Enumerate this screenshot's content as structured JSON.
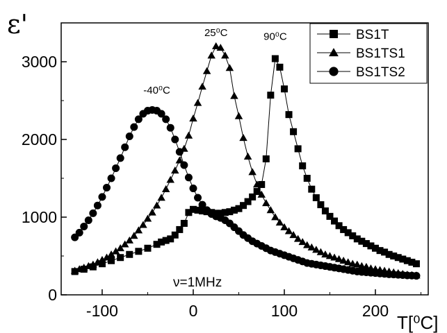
{
  "chart_data": {
    "type": "scatter",
    "ylabel": "ε'",
    "xlabel": "T[⁰C]",
    "xlim": [
      -145,
      258
    ],
    "ylim": [
      0,
      3500
    ],
    "x_ticks": [
      -100,
      0,
      100,
      200
    ],
    "y_ticks": [
      0,
      1000,
      2000,
      3000
    ],
    "grid": false,
    "legend_position": "top-right",
    "annotation_text": "ν=1MHz",
    "series": [
      {
        "name": "BS1T",
        "marker": "square",
        "x": [
          -130,
          -120,
          -110,
          -100,
          -90,
          -80,
          -70,
          -60,
          -50,
          -40,
          -35,
          -30,
          -25,
          -20,
          -15,
          -10,
          -5,
          0,
          5,
          10,
          15,
          20,
          25,
          30,
          35,
          40,
          45,
          50,
          55,
          60,
          65,
          70,
          75,
          80,
          85,
          90,
          95,
          100,
          105,
          110,
          115,
          120,
          125,
          130,
          135,
          140,
          145,
          150,
          155,
          160,
          165,
          170,
          175,
          180,
          185,
          190,
          195,
          200,
          205,
          210,
          215,
          220,
          225,
          230,
          235,
          240,
          245
        ],
        "y": [
          300,
          330,
          360,
          400,
          440,
          480,
          520,
          560,
          600,
          650,
          680,
          700,
          720,
          770,
          840,
          920,
          1060,
          1100,
          1090,
          1080,
          1070,
          1060,
          1050,
          1050,
          1060,
          1070,
          1090,
          1110,
          1150,
          1200,
          1260,
          1330,
          1420,
          1750,
          2570,
          3040,
          2930,
          2650,
          2320,
          2100,
          1880,
          1660,
          1500,
          1360,
          1250,
          1160,
          1080,
          1010,
          950,
          890,
          840,
          800,
          760,
          720,
          690,
          660,
          630,
          600,
          570,
          550,
          520,
          500,
          480,
          460,
          440,
          420,
          400
        ]
      },
      {
        "name": "BS1TS1",
        "marker": "triangle",
        "x": [
          -130,
          -125,
          -120,
          -115,
          -110,
          -105,
          -100,
          -95,
          -90,
          -85,
          -80,
          -75,
          -70,
          -65,
          -60,
          -55,
          -50,
          -45,
          -40,
          -35,
          -30,
          -25,
          -20,
          -15,
          -10,
          -5,
          0,
          5,
          10,
          15,
          20,
          25,
          30,
          35,
          40,
          45,
          50,
          55,
          60,
          65,
          70,
          75,
          80,
          85,
          90,
          95,
          100,
          105,
          110,
          115,
          120,
          125,
          130,
          135,
          140,
          145,
          150,
          155,
          160,
          165,
          170,
          175,
          180,
          185,
          190,
          195,
          200,
          205,
          210,
          215,
          220,
          225,
          230,
          235,
          240,
          245
        ],
        "y": [
          310,
          330,
          350,
          370,
          390,
          420,
          450,
          480,
          520,
          560,
          600,
          650,
          700,
          760,
          830,
          900,
          980,
          1060,
          1150,
          1250,
          1360,
          1480,
          1600,
          1730,
          1880,
          2050,
          2270,
          2470,
          2680,
          2880,
          3080,
          3200,
          3180,
          3080,
          2920,
          2560,
          2300,
          2020,
          1780,
          1580,
          1420,
          1290,
          1180,
          1090,
          1000,
          930,
          870,
          820,
          770,
          720,
          680,
          640,
          610,
          580,
          550,
          520,
          500,
          480,
          460,
          440,
          420,
          400,
          390,
          370,
          360,
          340,
          330,
          320,
          310,
          300,
          290,
          280,
          270,
          260,
          255,
          250
        ]
      },
      {
        "name": "BS1TS2",
        "marker": "circle",
        "x": [
          -130,
          -125,
          -120,
          -115,
          -110,
          -105,
          -100,
          -95,
          -90,
          -85,
          -80,
          -75,
          -70,
          -65,
          -60,
          -55,
          -50,
          -45,
          -40,
          -35,
          -30,
          -25,
          -20,
          -15,
          -10,
          -5,
          0,
          5,
          10,
          15,
          20,
          25,
          30,
          35,
          40,
          45,
          50,
          55,
          60,
          65,
          70,
          75,
          80,
          85,
          90,
          95,
          100,
          105,
          110,
          115,
          120,
          125,
          130,
          135,
          140,
          145,
          150,
          155,
          160,
          165,
          170,
          175,
          180,
          185,
          190,
          195,
          200,
          205,
          210,
          215,
          220,
          225,
          230,
          235,
          240,
          245
        ],
        "y": [
          740,
          800,
          880,
          960,
          1050,
          1150,
          1260,
          1380,
          1500,
          1630,
          1760,
          1900,
          2040,
          2160,
          2260,
          2330,
          2370,
          2380,
          2370,
          2330,
          2260,
          2150,
          2000,
          1840,
          1670,
          1510,
          1370,
          1250,
          1160,
          1090,
          1040,
          1010,
          990,
          960,
          920,
          870,
          820,
          770,
          730,
          690,
          660,
          630,
          600,
          570,
          550,
          530,
          510,
          490,
          470,
          450,
          430,
          410,
          400,
          390,
          380,
          370,
          360,
          350,
          340,
          330,
          320,
          310,
          300,
          295,
          290,
          285,
          280,
          275,
          270,
          265,
          262,
          258,
          255,
          250,
          248,
          245
        ]
      }
    ],
    "annotations": [
      {
        "text": "-40⁰C",
        "x": -40,
        "y": 2590
      },
      {
        "text": "25⁰C",
        "x": 25,
        "y": 3330
      },
      {
        "text": "90⁰C",
        "x": 90,
        "y": 3280
      }
    ]
  }
}
